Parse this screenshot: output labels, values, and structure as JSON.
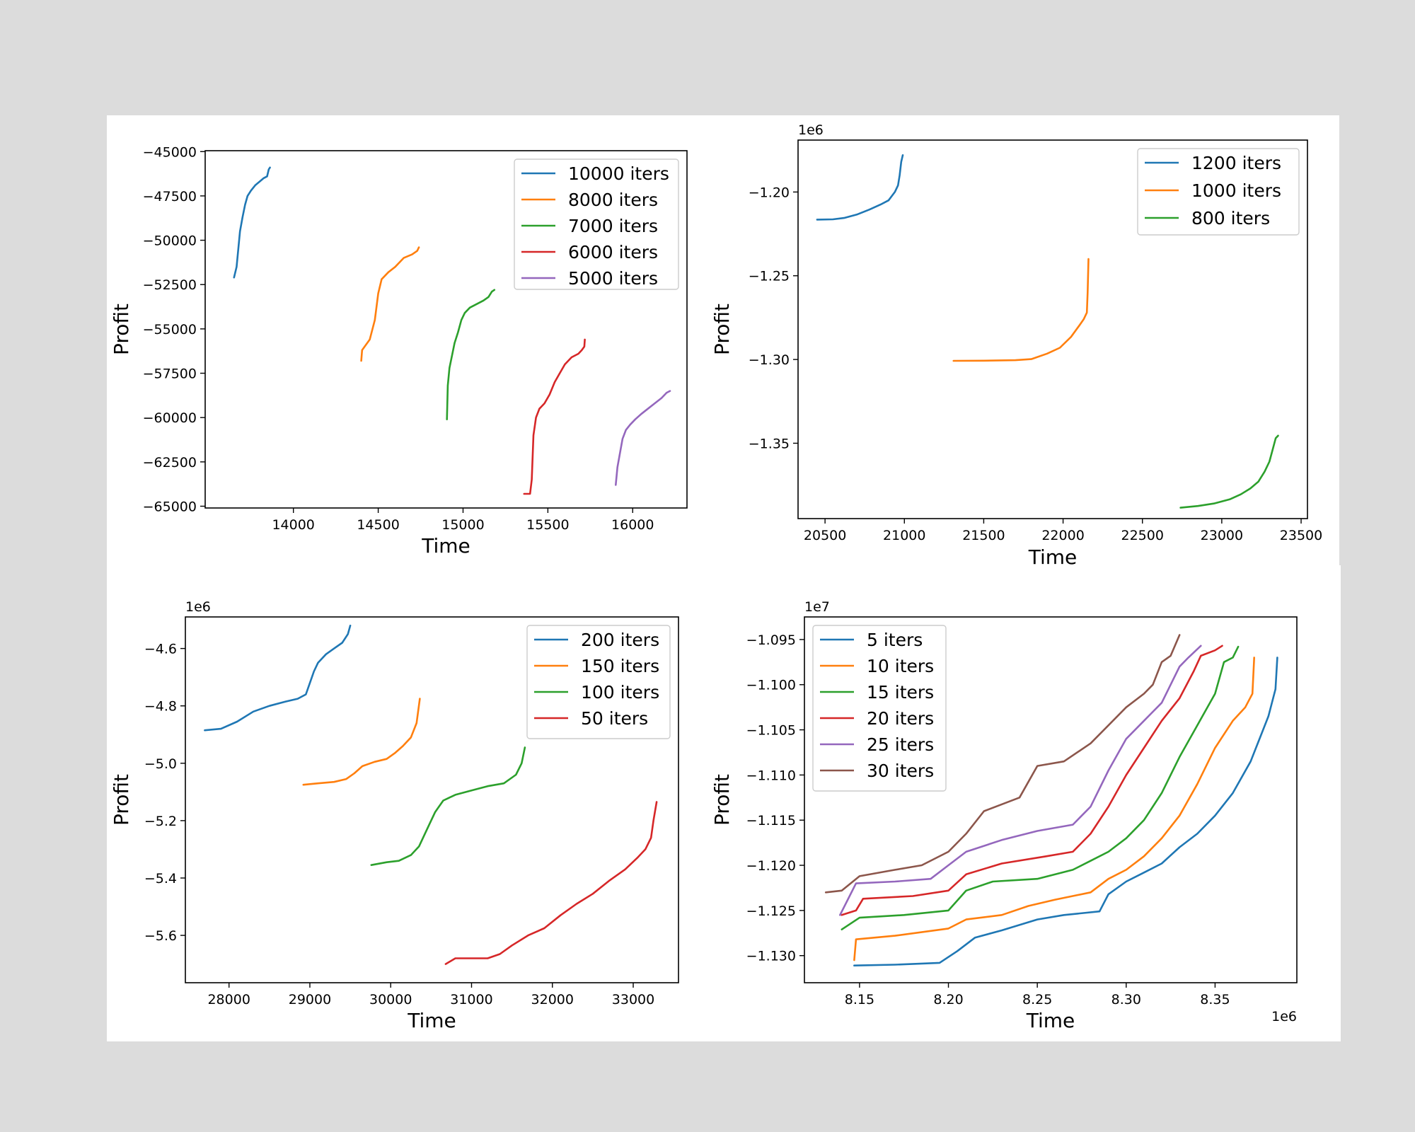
{
  "chart_data": [
    {
      "type": "line",
      "xlabel": "Time",
      "ylabel": "Profit",
      "x_offset_label": "",
      "y_offset_label": "",
      "xlim": [
        13480,
        16320
      ],
      "ylim": [
        -65100,
        -44950
      ],
      "xticks": [
        14000,
        14500,
        15000,
        15500,
        16000
      ],
      "xtick_labels": [
        "14000",
        "14500",
        "15000",
        "15500",
        "16000"
      ],
      "yticks": [
        -45000,
        -47500,
        -50000,
        -52500,
        -55000,
        -57500,
        -60000,
        -62500,
        -65000
      ],
      "ytick_labels": [
        "−45000",
        "−47500",
        "−50000",
        "−52500",
        "−55000",
        "−57500",
        "−60000",
        "−62500",
        "−65000"
      ],
      "legend_position": "upper right",
      "series": [
        {
          "name": "10000 iters",
          "color": "#1f77b4",
          "x": [
            13650,
            13665,
            13675,
            13685,
            13700,
            13715,
            13730,
            13750,
            13775,
            13800,
            13825,
            13845,
            13855,
            13862
          ],
          "y": [
            -52100,
            -51500,
            -50500,
            -49500,
            -48700,
            -48000,
            -47500,
            -47200,
            -46900,
            -46700,
            -46500,
            -46400,
            -46000,
            -45900
          ]
        },
        {
          "name": "8000 iters",
          "color": "#ff7f0e",
          "x": [
            14400,
            14405,
            14420,
            14450,
            14480,
            14500,
            14520,
            14540,
            14560,
            14600,
            14650,
            14700,
            14730,
            14740
          ],
          "y": [
            -56800,
            -56200,
            -56000,
            -55600,
            -54500,
            -53000,
            -52200,
            -52000,
            -51800,
            -51500,
            -51000,
            -50800,
            -50600,
            -50400
          ]
        },
        {
          "name": "7000 iters",
          "color": "#2ca02c",
          "x": [
            14905,
            14910,
            14920,
            14935,
            14950,
            14970,
            14990,
            15010,
            15040,
            15080,
            15120,
            15150,
            15170,
            15185
          ],
          "y": [
            -60100,
            -58200,
            -57200,
            -56500,
            -55800,
            -55200,
            -54500,
            -54100,
            -53800,
            -53600,
            -53400,
            -53200,
            -52900,
            -52800
          ]
        },
        {
          "name": "6000 iters",
          "color": "#d62728",
          "x": [
            15360,
            15395,
            15405,
            15415,
            15430,
            15450,
            15480,
            15510,
            15540,
            15570,
            15600,
            15640,
            15680,
            15700,
            15715,
            15718
          ],
          "y": [
            -64300,
            -64300,
            -63500,
            -61000,
            -60000,
            -59500,
            -59200,
            -58700,
            -58000,
            -57500,
            -57000,
            -56600,
            -56400,
            -56200,
            -56000,
            -55600
          ]
        },
        {
          "name": "5000 iters",
          "color": "#9467bd",
          "x": [
            15900,
            15910,
            15925,
            15940,
            15960,
            15985,
            16015,
            16050,
            16090,
            16130,
            16170,
            16200,
            16220
          ],
          "y": [
            -63800,
            -62800,
            -62000,
            -61200,
            -60700,
            -60400,
            -60100,
            -59800,
            -59500,
            -59200,
            -58900,
            -58600,
            -58500
          ]
        }
      ]
    },
    {
      "type": "line",
      "xlabel": "Time",
      "ylabel": "",
      "x_offset_label": "",
      "y_offset_label": "1e6",
      "xlim": [
        20330,
        23540
      ],
      "ylim": [
        -1.395,
        -1.169
      ],
      "xticks": [
        20500,
        21000,
        21500,
        22000,
        22500,
        23000,
        23500
      ],
      "xtick_labels": [
        "20500",
        "21000",
        "21500",
        "22000",
        "22500",
        "23000",
        "23500"
      ],
      "yticks": [
        -1.2,
        -1.25,
        -1.3,
        -1.35
      ],
      "ytick_labels": [
        "−1.20",
        "−1.25",
        "−1.30",
        "−1.35"
      ],
      "legend_position": "upper right",
      "series": [
        {
          "name": "1200 iters",
          "color": "#1f77b4",
          "x": [
            20450,
            20550,
            20620,
            20700,
            20780,
            20850,
            20900,
            20940,
            20960,
            20970,
            20980,
            20990
          ],
          "y": [
            -1.2165,
            -1.2163,
            -1.2155,
            -1.2135,
            -1.2105,
            -1.2075,
            -1.205,
            -1.2,
            -1.196,
            -1.19,
            -1.182,
            -1.178
          ]
        },
        {
          "name": "1000 iters",
          "color": "#ff7f0e",
          "x": [
            21310,
            21500,
            21700,
            21800,
            21900,
            21980,
            22050,
            22100,
            22130,
            22150,
            22155,
            22160
          ],
          "y": [
            -1.3008,
            -1.3007,
            -1.3004,
            -1.2998,
            -1.2965,
            -1.293,
            -1.2865,
            -1.28,
            -1.276,
            -1.272,
            -1.26,
            -1.24
          ]
        },
        {
          "name": "800 iters",
          "color": "#2ca02c",
          "x": [
            22740,
            22850,
            22950,
            23050,
            23120,
            23180,
            23230,
            23270,
            23300,
            23320,
            23340,
            23355
          ],
          "y": [
            -1.3885,
            -1.3875,
            -1.386,
            -1.3835,
            -1.3805,
            -1.377,
            -1.373,
            -1.367,
            -1.361,
            -1.354,
            -1.347,
            -1.3455
          ]
        }
      ]
    },
    {
      "type": "line",
      "xlabel": "Time",
      "ylabel": "Profit",
      "x_offset_label": "",
      "y_offset_label": "1e6",
      "xlim": [
        27460,
        33560
      ],
      "ylim": [
        -5.765,
        -4.49
      ],
      "xticks": [
        28000,
        29000,
        30000,
        31000,
        32000,
        33000
      ],
      "xtick_labels": [
        "28000",
        "29000",
        "30000",
        "31000",
        "32000",
        "33000"
      ],
      "yticks": [
        -4.6,
        -4.8,
        -5.0,
        -5.2,
        -5.4,
        -5.6
      ],
      "ytick_labels": [
        "−4.6",
        "−4.8",
        "−5.0",
        "−5.2",
        "−5.4",
        "−5.6"
      ],
      "legend_position": "upper right",
      "series": [
        {
          "name": "200 iters",
          "color": "#1f77b4",
          "x": [
            27700,
            27900,
            28100,
            28300,
            28500,
            28700,
            28850,
            28950,
            29000,
            29050,
            29100,
            29200,
            29300,
            29400,
            29470,
            29500
          ],
          "y": [
            -4.885,
            -4.88,
            -4.855,
            -4.82,
            -4.8,
            -4.785,
            -4.775,
            -4.76,
            -4.72,
            -4.68,
            -4.65,
            -4.62,
            -4.6,
            -4.58,
            -4.55,
            -4.52
          ]
        },
        {
          "name": "150 iters",
          "color": "#ff7f0e",
          "x": [
            28920,
            29100,
            29300,
            29450,
            29550,
            29650,
            29800,
            29950,
            30050,
            30150,
            30250,
            30320,
            30360
          ],
          "y": [
            -5.075,
            -5.07,
            -5.065,
            -5.055,
            -5.035,
            -5.01,
            -4.995,
            -4.985,
            -4.965,
            -4.94,
            -4.91,
            -4.86,
            -4.775
          ]
        },
        {
          "name": "100 iters",
          "color": "#2ca02c",
          "x": [
            29760,
            29950,
            30100,
            30250,
            30350,
            30450,
            30550,
            30650,
            30800,
            31000,
            31200,
            31400,
            31550,
            31620,
            31660
          ],
          "y": [
            -5.355,
            -5.345,
            -5.34,
            -5.32,
            -5.29,
            -5.23,
            -5.17,
            -5.13,
            -5.11,
            -5.095,
            -5.08,
            -5.07,
            -5.04,
            -5.0,
            -4.945
          ]
        },
        {
          "name": "50 iters",
          "color": "#d62728",
          "x": [
            30680,
            30800,
            31000,
            31200,
            31350,
            31500,
            31700,
            31900,
            32100,
            32300,
            32500,
            32700,
            32900,
            33050,
            33150,
            33220,
            33250,
            33290
          ],
          "y": [
            -5.7,
            -5.68,
            -5.68,
            -5.68,
            -5.665,
            -5.635,
            -5.6,
            -5.575,
            -5.53,
            -5.49,
            -5.455,
            -5.41,
            -5.37,
            -5.33,
            -5.3,
            -5.26,
            -5.2,
            -5.135
          ]
        }
      ]
    },
    {
      "type": "line",
      "xlabel": "Time",
      "ylabel": "Profit",
      "x_offset_label": "1e6",
      "y_offset_label": "1e7",
      "xlim": [
        8.119,
        8.396
      ],
      "ylim": [
        -1.133,
        -1.0925
      ],
      "xticks": [
        8.15,
        8.2,
        8.25,
        8.3,
        8.35
      ],
      "xtick_labels": [
        "8.15",
        "8.20",
        "8.25",
        "8.30",
        "8.35"
      ],
      "yticks": [
        -1.095,
        -1.1,
        -1.105,
        -1.11,
        -1.115,
        -1.12,
        -1.125,
        -1.13
      ],
      "ytick_labels": [
        "−1.095",
        "−1.100",
        "−1.105",
        "−1.110",
        "−1.115",
        "−1.120",
        "−1.125",
        "−1.130"
      ],
      "legend_position": "upper left",
      "series": [
        {
          "name": "5 iters",
          "color": "#1f77b4",
          "x": [
            8.147,
            8.17,
            8.195,
            8.205,
            8.215,
            8.23,
            8.25,
            8.265,
            8.285,
            8.29,
            8.3,
            8.31,
            8.32,
            8.33,
            8.34,
            8.35,
            8.36,
            8.37,
            8.38,
            8.384,
            8.385
          ],
          "y": [
            -1.1311,
            -1.131,
            -1.1308,
            -1.1295,
            -1.128,
            -1.1272,
            -1.126,
            -1.1255,
            -1.1251,
            -1.1232,
            -1.1218,
            -1.1208,
            -1.1198,
            -1.118,
            -1.1165,
            -1.1145,
            -1.112,
            -1.1085,
            -1.1035,
            -1.1005,
            -1.097
          ]
        },
        {
          "name": "10 iters",
          "color": "#ff7f0e",
          "x": [
            8.147,
            8.148,
            8.17,
            8.2,
            8.21,
            8.23,
            8.245,
            8.26,
            8.28,
            8.29,
            8.3,
            8.31,
            8.32,
            8.33,
            8.34,
            8.35,
            8.36,
            8.367,
            8.371,
            8.372
          ],
          "y": [
            -1.1305,
            -1.1282,
            -1.1278,
            -1.127,
            -1.126,
            -1.1255,
            -1.1245,
            -1.1238,
            -1.123,
            -1.1215,
            -1.1205,
            -1.119,
            -1.117,
            -1.1145,
            -1.111,
            -1.107,
            -1.104,
            -1.1025,
            -1.101,
            -1.097
          ]
        },
        {
          "name": "15 iters",
          "color": "#2ca02c",
          "x": [
            8.14,
            8.15,
            8.175,
            8.2,
            8.21,
            8.225,
            8.25,
            8.27,
            8.28,
            8.29,
            8.3,
            8.31,
            8.32,
            8.33,
            8.34,
            8.35,
            8.355,
            8.36,
            8.363
          ],
          "y": [
            -1.1271,
            -1.1258,
            -1.1255,
            -1.125,
            -1.1228,
            -1.1218,
            -1.1215,
            -1.1205,
            -1.1195,
            -1.1185,
            -1.117,
            -1.115,
            -1.112,
            -1.108,
            -1.1045,
            -1.101,
            -1.0975,
            -1.097,
            -1.0958
          ]
        },
        {
          "name": "20 iters",
          "color": "#d62728",
          "x": [
            8.14,
            8.148,
            8.152,
            8.18,
            8.2,
            8.21,
            8.23,
            8.255,
            8.27,
            8.28,
            8.29,
            8.3,
            8.31,
            8.32,
            8.33,
            8.338,
            8.342,
            8.35,
            8.354
          ],
          "y": [
            -1.1255,
            -1.125,
            -1.1237,
            -1.1234,
            -1.1228,
            -1.121,
            -1.1198,
            -1.119,
            -1.1185,
            -1.1165,
            -1.1135,
            -1.11,
            -1.107,
            -1.104,
            -1.1015,
            -1.0985,
            -1.0968,
            -1.0962,
            -1.0957
          ]
        },
        {
          "name": "25 iters",
          "color": "#9467bd",
          "x": [
            8.139,
            8.148,
            8.17,
            8.19,
            8.2,
            8.21,
            8.23,
            8.25,
            8.27,
            8.28,
            8.29,
            8.3,
            8.31,
            8.315,
            8.32,
            8.33,
            8.335,
            8.342
          ],
          "y": [
            -1.1255,
            -1.122,
            -1.1218,
            -1.1215,
            -1.12,
            -1.1185,
            -1.1172,
            -1.1162,
            -1.1155,
            -1.1135,
            -1.1095,
            -1.106,
            -1.104,
            -1.103,
            -1.102,
            -1.098,
            -1.097,
            -1.0957
          ]
        },
        {
          "name": "30 iters",
          "color": "#8c564b",
          "x": [
            8.131,
            8.14,
            8.15,
            8.17,
            8.185,
            8.2,
            8.21,
            8.22,
            8.24,
            8.25,
            8.265,
            8.28,
            8.29,
            8.3,
            8.31,
            8.315,
            8.32,
            8.325,
            8.33
          ],
          "y": [
            -1.123,
            -1.1228,
            -1.1212,
            -1.1205,
            -1.12,
            -1.1185,
            -1.1165,
            -1.114,
            -1.1125,
            -1.109,
            -1.1085,
            -1.1065,
            -1.1045,
            -1.1025,
            -1.101,
            -1.1,
            -1.0975,
            -1.0968,
            -1.0945
          ]
        }
      ]
    }
  ]
}
